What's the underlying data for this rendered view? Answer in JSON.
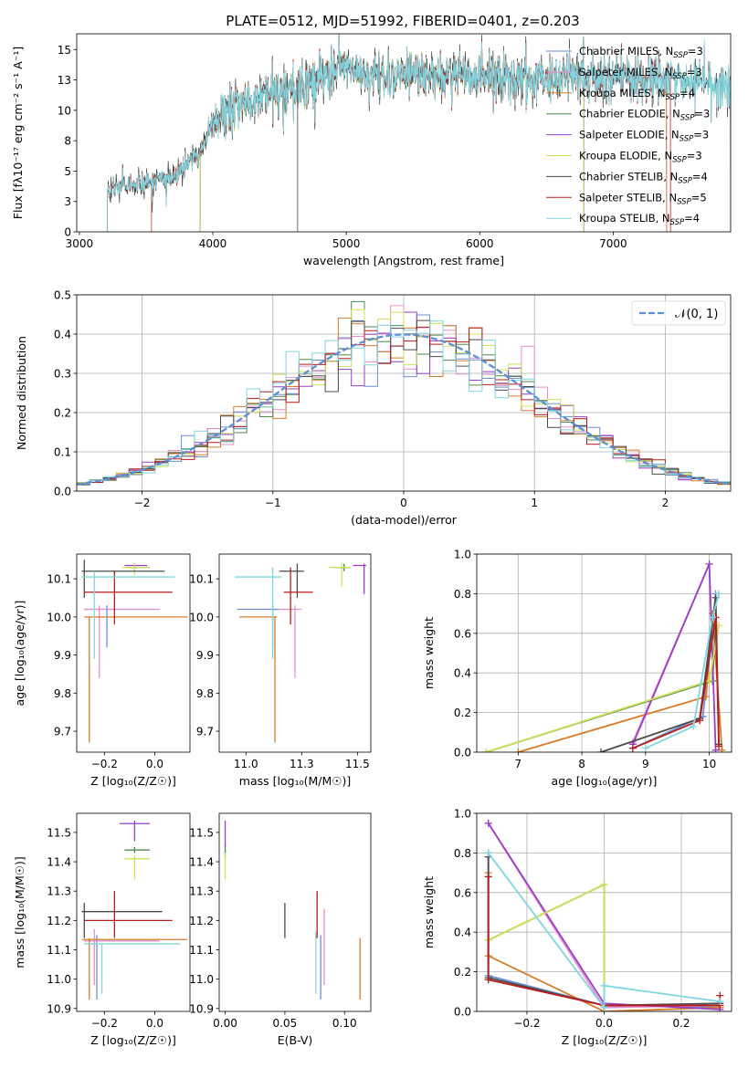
{
  "colors": {
    "Chabrier MILES": "#6b8fd6",
    "Salpeter MILES": "#e58fcf",
    "Kroupa MILES": "#d87c2a",
    "Chabrier ELODIE": "#4f8a4f",
    "Salpeter ELODIE": "#9b3fc4",
    "Kroupa ELODIE": "#cfe05a",
    "Chabrier STELIB": "#4a4a4a",
    "Salpeter STELIB": "#b81c1c",
    "Kroupa STELIB": "#7fd6e0",
    "normal": "#5b8fd6"
  },
  "chart_data": [
    {
      "id": "spectrum",
      "type": "line",
      "title": "PLATE=0512, MJD=51992, FIBERID=0401, z=0.203",
      "xlabel": "wavelength [Angstrom, rest frame]",
      "ylabel": "Flux [fλ10⁻¹⁷ erg cm⁻² s⁻¹ A⁻¹]",
      "xlim": [
        2980,
        7880
      ],
      "ylim": [
        0,
        16.3
      ],
      "xticks": [
        3000,
        4000,
        5000,
        6000,
        7000
      ],
      "yticks": [
        0.0,
        2.5,
        5.0,
        7.5,
        10.0,
        12.5,
        15.0
      ],
      "grid": false,
      "legend_position": "top-right",
      "legend": [
        {
          "series": "Chabrier MILES",
          "label": "Chabrier MILES, N",
          "sub": "SSP",
          "tail": "=3"
        },
        {
          "series": "Salpeter MILES",
          "label": "Salpeter MILES, N",
          "sub": "SSP",
          "tail": "=3"
        },
        {
          "series": "Kroupa MILES",
          "label": "Kroupa MILES, N",
          "sub": "SSP",
          "tail": "=4"
        },
        {
          "series": "Chabrier ELODIE",
          "label": "Chabrier ELODIE, N",
          "sub": "SSP",
          "tail": "=3"
        },
        {
          "series": "Salpeter ELODIE",
          "label": "Salpeter ELODIE, N",
          "sub": "SSP",
          "tail": "=3"
        },
        {
          "series": "Kroupa ELODIE",
          "label": "Kroupa ELODIE, N",
          "sub": "SSP",
          "tail": "=3"
        },
        {
          "series": "Chabrier STELIB",
          "label": "Chabrier STELIB, N",
          "sub": "SSP",
          "tail": "=4"
        },
        {
          "series": "Salpeter STELIB",
          "label": "Salpeter STELIB, N",
          "sub": "SSP",
          "tail": "=5"
        },
        {
          "series": "Kroupa STELIB",
          "label": "Kroupa STELIB, N",
          "sub": "SSP",
          "tail": "=4"
        }
      ],
      "continuum": {
        "x": [
          3210,
          3300,
          3500,
          3700,
          3900,
          4000,
          4100,
          4300,
          4500,
          4800,
          5000,
          5200,
          5500,
          5800,
          6000,
          6300,
          6600,
          6900,
          7200,
          7500,
          7880
        ],
        "y": [
          3.5,
          3.7,
          4.0,
          4.6,
          6.5,
          9.0,
          10.0,
          10.6,
          11.6,
          12.6,
          13.4,
          12.9,
          13.0,
          12.9,
          12.7,
          12.5,
          12.6,
          12.9,
          12.7,
          12.4,
          12.0
        ]
      },
      "starts": {
        "Chabrier MILES": 3540,
        "Salpeter MILES": 3540,
        "Kroupa MILES": 3540,
        "Chabrier ELODIE": 3905,
        "Salpeter ELODIE": 3905,
        "Kroupa ELODIE": 3905,
        "Chabrier STELIB": 3210,
        "Salpeter STELIB": 3210,
        "Kroupa STELIB": 3210
      },
      "ends": {
        "Chabrier MILES": 7400,
        "Salpeter MILES": 7400,
        "Kroupa MILES": 7400,
        "Chabrier ELODIE": 6780,
        "Salpeter ELODIE": 6780,
        "Kroupa ELODIE": 6780,
        "Chabrier STELIB": 7880,
        "Salpeter STELIB": 7430,
        "Kroupa STELIB": 7880
      }
    },
    {
      "id": "residuals",
      "type": "line",
      "xlabel": "(data-model)/error",
      "ylabel": "Normed distribution",
      "xlim": [
        -2.5,
        2.5
      ],
      "ylim": [
        0,
        0.5
      ],
      "xticks": [
        -2,
        -1,
        0,
        1,
        2
      ],
      "yticks": [
        0.0,
        0.1,
        0.2,
        0.3,
        0.4,
        0.5
      ],
      "grid": true,
      "legend_position": "top-right",
      "legend_label": "𝒩(0, 1)",
      "bin_width": 0.1,
      "bin_start": -2.5
    },
    {
      "id": "age_vs_Z",
      "type": "scatter",
      "xlabel": "Z [log₁₀(Z/Z☉)]",
      "ylabel": "age  [log₁₀(age/yr)]",
      "xlim": [
        -0.31,
        0.14
      ],
      "ylim": [
        9.645,
        10.165
      ],
      "xticks": [
        -0.2,
        0.0
      ],
      "yticks": [
        9.7,
        9.8,
        9.9,
        10.0,
        10.1
      ],
      "points": [
        {
          "series": "Chabrier MILES",
          "x": -0.19,
          "y": 10.02,
          "x0": -0.28,
          "x1": -0.01,
          "y0": 9.92,
          "y1": 10.03
        },
        {
          "series": "Salpeter MILES",
          "x": -0.22,
          "y": 10.02,
          "x0": -0.28,
          "x1": 0.02,
          "y0": 9.84,
          "y1": 10.03
        },
        {
          "series": "Kroupa MILES",
          "x": -0.26,
          "y": 10.0,
          "x0": -0.28,
          "x1": 0.13,
          "y0": 9.67,
          "y1": 10.0
        },
        {
          "series": "Chabrier ELODIE",
          "x": -0.08,
          "y": 10.13,
          "x0": -0.1,
          "x1": -0.02,
          "y0": 10.12,
          "y1": 10.14
        },
        {
          "series": "Salpeter ELODIE",
          "x": -0.08,
          "y": 10.135,
          "x0": -0.12,
          "x1": -0.03,
          "y0": 10.13,
          "y1": 10.14
        },
        {
          "series": "Kroupa ELODIE",
          "x": -0.08,
          "y": 10.13,
          "x0": -0.13,
          "x1": -0.02,
          "y0": 10.11,
          "y1": 10.14
        },
        {
          "series": "Chabrier STELIB",
          "x": -0.28,
          "y": 10.12,
          "x0": -0.29,
          "x1": 0.04,
          "y0": 10.05,
          "y1": 10.15
        },
        {
          "series": "Salpeter STELIB",
          "x": -0.16,
          "y": 10.065,
          "x0": -0.28,
          "x1": 0.07,
          "y0": 9.98,
          "y1": 10.12
        },
        {
          "series": "Kroupa STELIB",
          "x": -0.24,
          "y": 10.105,
          "x0": -0.29,
          "x1": 0.08,
          "y0": 9.89,
          "y1": 10.12
        }
      ]
    },
    {
      "id": "age_vs_mass",
      "type": "scatter",
      "xlabel": "mass [log₁₀(M/M☉)]",
      "ylabel": "",
      "xlim": [
        10.88,
        11.56
      ],
      "ylim": [
        9.645,
        10.165
      ],
      "xticks": [
        11.0,
        11.25,
        11.5
      ],
      "yticks": [
        9.7,
        9.8,
        9.9,
        10.0,
        10.1
      ],
      "points": [
        {
          "series": "Chabrier MILES",
          "x": 11.12,
          "y": 10.02,
          "x0": 10.96,
          "x1": 11.15,
          "y0": 9.92,
          "y1": 10.03
        },
        {
          "series": "Salpeter MILES",
          "x": 11.22,
          "y": 10.02,
          "x0": 11.15,
          "x1": 11.25,
          "y0": 9.84,
          "y1": 10.03
        },
        {
          "series": "Kroupa MILES",
          "x": 11.13,
          "y": 10.0,
          "x0": 10.97,
          "x1": 11.14,
          "y0": 9.67,
          "y1": 10.0
        },
        {
          "series": "Chabrier ELODIE",
          "x": 11.44,
          "y": 10.13,
          "x0": 11.39,
          "x1": 11.47,
          "y0": 10.12,
          "y1": 10.14
        },
        {
          "series": "Salpeter ELODIE",
          "x": 11.53,
          "y": 10.135,
          "x0": 11.48,
          "x1": 11.54,
          "y0": 10.06,
          "y1": 10.14
        },
        {
          "series": "Kroupa ELODIE",
          "x": 11.43,
          "y": 10.13,
          "x0": 11.37,
          "x1": 11.47,
          "y0": 10.08,
          "y1": 10.14
        },
        {
          "series": "Chabrier STELIB",
          "x": 11.23,
          "y": 10.12,
          "x0": 11.15,
          "x1": 11.26,
          "y0": 10.05,
          "y1": 10.14
        },
        {
          "series": "Salpeter STELIB",
          "x": 11.2,
          "y": 10.065,
          "x0": 11.17,
          "x1": 11.3,
          "y0": 9.98,
          "y1": 10.13
        },
        {
          "series": "Kroupa STELIB",
          "x": 11.12,
          "y": 10.105,
          "x0": 10.95,
          "x1": 11.16,
          "y0": 9.89,
          "y1": 10.13
        }
      ]
    },
    {
      "id": "weight_vs_age",
      "type": "line",
      "xlabel": "age  [log₁₀(age/yr)]",
      "ylabel": "mass weight",
      "xlim": [
        6.35,
        10.35
      ],
      "ylim": [
        0,
        1.0
      ],
      "xticks": [
        7,
        8,
        9,
        10
      ],
      "yticks": [
        0.0,
        0.2,
        0.4,
        0.6,
        0.8,
        1.0
      ],
      "grid": true,
      "series": [
        {
          "name": "Chabrier MILES",
          "x": [
            8.8,
            9.9,
            10.1
          ],
          "y": [
            0.02,
            0.18,
            0.8
          ]
        },
        {
          "name": "Salpeter MILES",
          "x": [
            8.8,
            10.0,
            8.8
          ],
          "y": [
            0.05,
            0.95,
            0.04
          ]
        },
        {
          "name": "Kroupa MILES",
          "x": [
            7.0,
            9.95,
            10.05,
            10.2
          ],
          "y": [
            0.0,
            0.28,
            0.7,
            0.01
          ]
        },
        {
          "name": "Chabrier ELODIE",
          "x": [
            6.5,
            10.05,
            10.1
          ],
          "y": [
            0.0,
            0.36,
            0.64
          ]
        },
        {
          "name": "Salpeter ELODIE",
          "x": [
            8.8,
            10.0,
            10.1
          ],
          "y": [
            0.04,
            0.95,
            0.01
          ]
        },
        {
          "name": "Kroupa ELODIE",
          "x": [
            6.5,
            10.0,
            10.15
          ],
          "y": [
            0.0,
            0.36,
            0.64
          ]
        },
        {
          "name": "Chabrier STELIB",
          "x": [
            8.3,
            9.85,
            10.1,
            10.15
          ],
          "y": [
            0.0,
            0.17,
            0.78,
            0.04
          ]
        },
        {
          "name": "Salpeter STELIB",
          "x": [
            8.8,
            9.85,
            10.1,
            10.15
          ],
          "y": [
            0.02,
            0.16,
            0.68,
            0.03
          ]
        },
        {
          "name": "Kroupa STELIB",
          "x": [
            9.0,
            9.75,
            10.05,
            10.15
          ],
          "y": [
            0.02,
            0.13,
            0.68,
            0.8
          ]
        }
      ]
    },
    {
      "id": "mass_vs_Z",
      "type": "scatter",
      "xlabel": "Z [log₁₀(Z/Z☉)]",
      "ylabel": "mass [log₁₀(M/M☉)]",
      "xlim": [
        -0.31,
        0.14
      ],
      "ylim": [
        10.89,
        11.565
      ],
      "xticks": [
        -0.2,
        0.0
      ],
      "yticks": [
        10.9,
        11.0,
        11.1,
        11.2,
        11.3,
        11.4,
        11.5
      ],
      "points": [
        {
          "series": "Chabrier MILES",
          "x": -0.23,
          "y": 11.13,
          "x0": -0.28,
          "x1": 0.01,
          "y0": 10.93,
          "y1": 11.15
        },
        {
          "series": "Salpeter MILES",
          "x": -0.24,
          "y": 11.13,
          "x0": -0.28,
          "x1": 0.02,
          "y0": 10.98,
          "y1": 11.17
        },
        {
          "series": "Kroupa MILES",
          "x": -0.26,
          "y": 11.135,
          "x0": -0.29,
          "x1": 0.13,
          "y0": 10.93,
          "y1": 11.14
        },
        {
          "series": "Chabrier ELODIE",
          "x": -0.08,
          "y": 11.44,
          "x0": -0.12,
          "x1": -0.02,
          "y0": 11.43,
          "y1": 11.45
        },
        {
          "series": "Salpeter ELODIE",
          "x": -0.08,
          "y": 11.53,
          "x0": -0.14,
          "x1": -0.02,
          "y0": 11.47,
          "y1": 11.54
        },
        {
          "series": "Kroupa ELODIE",
          "x": -0.08,
          "y": 11.41,
          "x0": -0.12,
          "x1": -0.02,
          "y0": 11.34,
          "y1": 11.42
        },
        {
          "series": "Chabrier STELIB",
          "x": -0.28,
          "y": 11.23,
          "x0": -0.29,
          "x1": 0.03,
          "y0": 11.14,
          "y1": 11.26
        },
        {
          "series": "Salpeter STELIB",
          "x": -0.16,
          "y": 11.2,
          "x0": -0.28,
          "x1": 0.07,
          "y0": 11.14,
          "y1": 11.3
        },
        {
          "series": "Kroupa STELIB",
          "x": -0.21,
          "y": 11.12,
          "x0": -0.28,
          "x1": 0.1,
          "y0": 10.95,
          "y1": 11.12
        }
      ]
    },
    {
      "id": "mass_vs_EBV",
      "type": "scatter",
      "xlabel": "E(B-V)",
      "ylabel": "",
      "xlim": [
        -0.005,
        0.122
      ],
      "ylim": [
        10.89,
        11.565
      ],
      "xticks": [
        0.0,
        0.05,
        0.1
      ],
      "yticks": [
        10.9,
        11.0,
        11.1,
        11.2,
        11.3,
        11.4,
        11.5
      ],
      "points": [
        {
          "series": "Chabrier MILES",
          "x": 0.08,
          "y": 11.13,
          "y0": 10.93,
          "y1": 11.15
        },
        {
          "series": "Salpeter MILES",
          "x": 0.083,
          "y": 11.13,
          "y0": 10.98,
          "y1": 11.24
        },
        {
          "series": "Kroupa MILES",
          "x": 0.113,
          "y": 11.135,
          "y0": 10.93,
          "y1": 11.14
        },
        {
          "series": "Chabrier ELODIE",
          "x": 0.0,
          "y": 11.44,
          "y0": 11.41,
          "y1": 11.46
        },
        {
          "series": "Salpeter ELODIE",
          "x": 0.0,
          "y": 11.53,
          "y0": 11.45,
          "y1": 11.54
        },
        {
          "series": "Kroupa ELODIE",
          "x": 0.0,
          "y": 11.41,
          "y0": 11.34,
          "y1": 11.43
        },
        {
          "series": "Chabrier STELIB",
          "x": 0.05,
          "y": 11.23,
          "y0": 11.14,
          "y1": 11.26
        },
        {
          "series": "Salpeter STELIB",
          "x": 0.077,
          "y": 11.2,
          "y0": 11.14,
          "y1": 11.3
        },
        {
          "series": "Kroupa STELIB",
          "x": 0.076,
          "y": 11.12,
          "y0": 10.95,
          "y1": 11.16
        }
      ]
    },
    {
      "id": "weight_vs_Z",
      "type": "line",
      "xlabel": "Z [log₁₀(Z/Z☉)]",
      "ylabel": "mass weight",
      "xlim": [
        -0.33,
        0.33
      ],
      "ylim": [
        0,
        1.0
      ],
      "xticks": [
        -0.2,
        0.0,
        0.2
      ],
      "yticks": [
        0.0,
        0.2,
        0.4,
        0.6,
        0.8,
        1.0
      ],
      "grid": true,
      "series": [
        {
          "name": "Chabrier MILES",
          "x": [
            -0.3,
            -0.3,
            0.0,
            0.3
          ],
          "y": [
            0.8,
            0.18,
            0.03,
            0.02
          ]
        },
        {
          "name": "Salpeter MILES",
          "x": [
            -0.3,
            0.0,
            0.3
          ],
          "y": [
            0.95,
            0.02,
            0.03
          ]
        },
        {
          "name": "Kroupa MILES",
          "x": [
            -0.3,
            -0.3,
            0.0,
            0.3
          ],
          "y": [
            0.7,
            0.28,
            0.0,
            0.02
          ]
        },
        {
          "name": "Chabrier ELODIE",
          "x": [
            -0.3,
            0.0,
            0.0
          ],
          "y": [
            0.36,
            0.64,
            0.0
          ]
        },
        {
          "name": "Salpeter ELODIE",
          "x": [
            -0.3,
            0.0,
            0.3
          ],
          "y": [
            0.95,
            0.04,
            0.01
          ]
        },
        {
          "name": "Kroupa ELODIE",
          "x": [
            -0.3,
            0.0,
            0.0
          ],
          "y": [
            0.36,
            0.64,
            0.0
          ]
        },
        {
          "name": "Chabrier STELIB",
          "x": [
            -0.3,
            -0.3,
            0.0,
            0.3
          ],
          "y": [
            0.78,
            0.17,
            0.03,
            0.04
          ]
        },
        {
          "name": "Salpeter STELIB",
          "x": [
            -0.3,
            -0.3,
            0.0,
            0.3,
            0.3
          ],
          "y": [
            0.68,
            0.16,
            0.03,
            0.03,
            0.08
          ]
        },
        {
          "name": "Kroupa STELIB",
          "x": [
            -0.3,
            0.0,
            0.0,
            0.3
          ],
          "y": [
            0.8,
            0.02,
            0.13,
            0.05
          ]
        }
      ]
    }
  ]
}
